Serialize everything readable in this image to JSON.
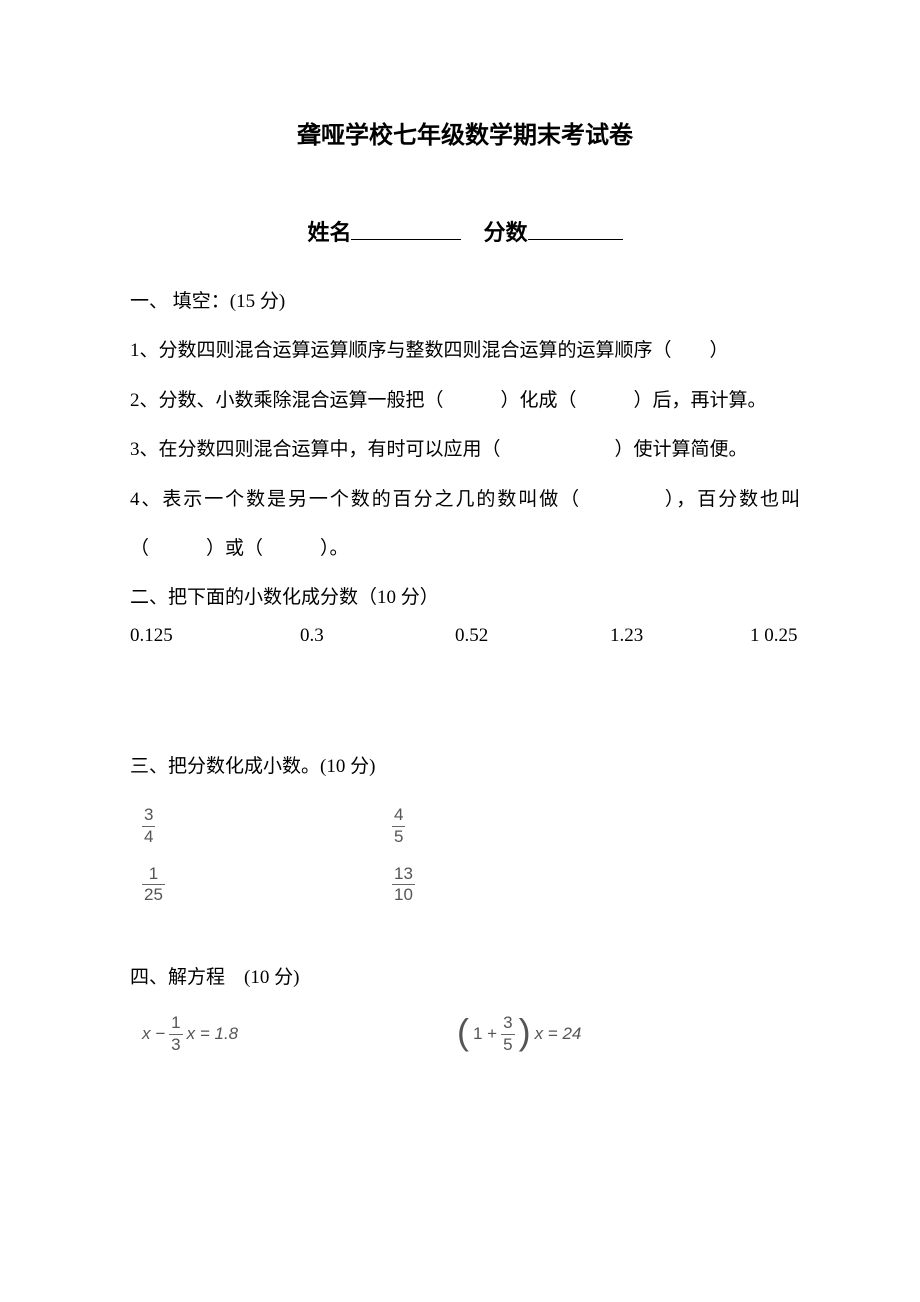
{
  "title": "聋哑学校七年级数学期末考试卷",
  "nameLabel": "姓名",
  "scoreLabel": "分数",
  "s1": {
    "heading": "一、 填空：(15 分)",
    "q1": "1、分数四则混合运算运算顺序与整数四则混合运算的运算顺序（　　）",
    "q2": "2、分数、小数乘除混合运算一般把（　　　）化成（　　　）后，再计算。",
    "q3": "3、在分数四则混合运算中，有时可以应用（　　　　　　）使计算简便。",
    "q4": "4、表示一个数是另一个数的百分之几的数叫做（　　　　），百分数也叫（　　　）或（　　　）。"
  },
  "s2": {
    "heading": "二、把下面的小数化成分数（10 分）",
    "v1": "0.125",
    "v2": "0.3",
    "v3": "0.52",
    "v4": "1.23",
    "v5": "1 0.25"
  },
  "s3": {
    "heading": "三、把分数化成小数。(10 分)",
    "f1": {
      "num": "3",
      "den": "4"
    },
    "f2": {
      "num": "4",
      "den": "5"
    },
    "f3": {
      "num": "1",
      "den": "25"
    },
    "f4": {
      "num": "13",
      "den": "10"
    }
  },
  "s4": {
    "heading": "四、解方程　(10 分)",
    "eq1": {
      "pre": "x −",
      "fnum": "1",
      "fden": "3",
      "post": "x = 1.8"
    },
    "eq2": {
      "lpar": "(",
      "pre": "1 +",
      "fnum": "3",
      "fden": "5",
      "rpar": ")",
      "post": "x = 24"
    }
  }
}
